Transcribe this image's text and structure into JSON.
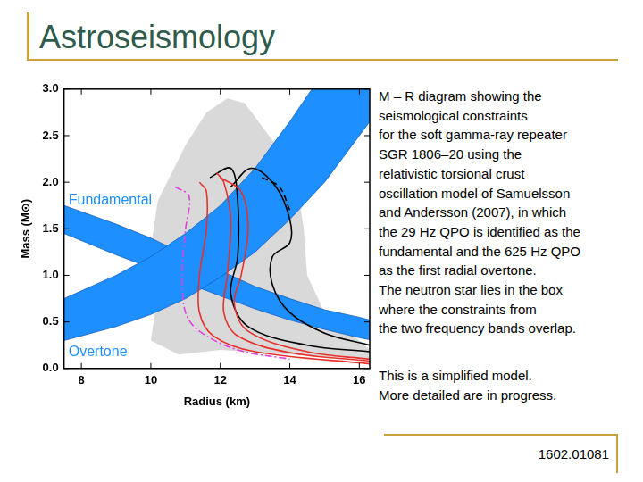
{
  "slide": {
    "title": "Astroseismology",
    "caption_lines": [
      "M – R diagram showing the",
      "seismological constraints",
      "for the soft gamma-ray repeater",
      "SGR 1806–20 using the",
      "relativistic torsional crust",
      "oscillation model of Samuelsson",
      "and Andersson (2007), in which",
      "the 29 Hz QPO is identified as the",
      "fundamental and the 625 Hz QPO",
      "as the first radial overtone.",
      "The neutron star lies in the box",
      "where the constraints from",
      "the two frequency bands overlap."
    ],
    "note_lines": [
      "This is a simplified model.",
      "More detailed are in progress."
    ],
    "footer": "1602.01081"
  },
  "chart_data": {
    "type": "line",
    "x_label": "Radius (km)",
    "y_label": "Mass (M⊙)",
    "xlim": [
      7.5,
      16.3
    ],
    "xticks": [
      8,
      10,
      12,
      14,
      16
    ],
    "ylim": [
      0,
      3
    ],
    "yticks": [
      {
        "value": 0,
        "label": "0.0"
      },
      0.5,
      {
        "value": 1,
        "label": "1.0"
      },
      1.5,
      {
        "value": 2,
        "label": "2.0"
      },
      2.5,
      {
        "value": 3,
        "label": "3.0"
      }
    ],
    "grid": false,
    "annotations": [
      {
        "text": "Fundamental",
        "x": 7.63,
        "y": 1.8,
        "color": "#1e8fff"
      },
      {
        "text": "Overtone",
        "x": 7.63,
        "y": 0.17,
        "color": "#1e8fff"
      }
    ],
    "series": [
      {
        "type": "area",
        "color": "#d9d9d9",
        "x": [
          10.0,
          10.2,
          10.0,
          10.2,
          10.6,
          11.0,
          11.6,
          12.2,
          12.7,
          13.2,
          13.8,
          14.2,
          14.4,
          14.5,
          15.0,
          16.0,
          16.3,
          16.3,
          14.0,
          12.0,
          10.8,
          10.0
        ],
        "values": [
          0.3,
          0.8,
          1.3,
          1.8,
          2.1,
          2.4,
          2.75,
          2.9,
          2.85,
          2.6,
          2.3,
          2.0,
          1.5,
          1.0,
          0.6,
          0.3,
          0.2,
          0.1,
          0.15,
          0.2,
          0.15,
          0.3
        ]
      },
      {
        "type": "band",
        "color": "#1e8fff",
        "x": [
          7.5,
          9,
          10,
          11,
          12,
          13,
          14,
          15,
          16,
          16.3
        ],
        "upper": [
          0.75,
          1.0,
          1.2,
          1.45,
          1.75,
          2.15,
          2.65,
          3.2,
          3.8,
          4.0
        ],
        "lower": [
          0.3,
          0.45,
          0.58,
          0.75,
          0.98,
          1.25,
          1.6,
          2.0,
          2.5,
          2.65
        ]
      },
      {
        "type": "band",
        "color": "#1e8fff",
        "x": [
          7.5,
          9,
          10,
          11,
          12,
          13,
          14,
          15,
          16,
          16.3
        ],
        "upper": [
          1.75,
          1.55,
          1.4,
          1.22,
          1.05,
          0.88,
          0.75,
          0.63,
          0.55,
          0.52
        ],
        "lower": [
          1.45,
          1.22,
          1.08,
          0.92,
          0.78,
          0.64,
          0.52,
          0.42,
          0.33,
          0.31
        ]
      },
      {
        "type": "line",
        "color": "#e040e0",
        "line_style": "dashdot",
        "x": [
          10.7,
          11.1,
          11.0,
          10.9,
          11.0,
          11.4,
          12.5,
          14.0
        ],
        "values": [
          1.95,
          1.85,
          1.5,
          1.0,
          0.6,
          0.4,
          0.2,
          0.1
        ]
      },
      {
        "type": "line",
        "color": "#e8302a",
        "line_style": "solid",
        "x": [
          11.4,
          11.6,
          11.6,
          11.4,
          11.4,
          11.8,
          13.0,
          16.3
        ],
        "values": [
          2.0,
          1.9,
          1.5,
          1.0,
          0.6,
          0.35,
          0.18,
          0.05
        ]
      },
      {
        "type": "line",
        "color": "#e8302a",
        "line_style": "solid",
        "x": [
          11.9,
          12.1,
          12.3,
          12.2,
          12.1,
          12.5,
          14.0,
          16.3
        ],
        "values": [
          2.1,
          2.0,
          1.6,
          1.0,
          0.6,
          0.35,
          0.17,
          0.08
        ]
      },
      {
        "type": "line",
        "color": "#e8302a",
        "line_style": "solid",
        "x": [
          12.0,
          12.6,
          12.8,
          12.6,
          12.4,
          12.8,
          14.5,
          16.3
        ],
        "values": [
          2.05,
          1.9,
          1.5,
          1.0,
          0.7,
          0.4,
          0.18,
          0.1
        ]
      },
      {
        "type": "line",
        "color": "#000000",
        "line_style": "solid",
        "x": [
          11.7,
          12.3,
          12.5,
          12.5,
          12.3,
          12.8,
          14.5,
          16.3
        ],
        "values": [
          2.05,
          2.15,
          1.8,
          1.2,
          0.8,
          0.45,
          0.25,
          0.18
        ]
      },
      {
        "type": "line",
        "color": "#000000",
        "line_style": "solid",
        "x": [
          12.3,
          12.9,
          13.6,
          14.0,
          14.0,
          13.5,
          13.5,
          14.0,
          15.0,
          16.3
        ],
        "values": [
          1.95,
          2.15,
          1.95,
          1.6,
          1.35,
          1.2,
          0.9,
          0.6,
          0.38,
          0.25
        ]
      },
      {
        "type": "line",
        "color": "#000000",
        "line_style": "dashed",
        "x": [
          13.2,
          13.7,
          14.0
        ],
        "values": [
          2.05,
          1.95,
          1.7
        ]
      }
    ]
  }
}
